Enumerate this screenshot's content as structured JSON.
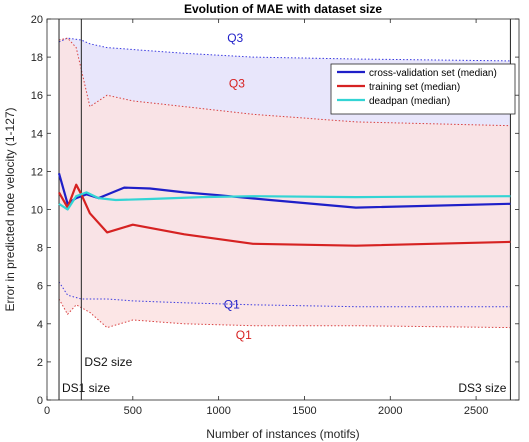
{
  "chart_data": {
    "type": "line",
    "title": "Evolution of MAE with dataset size",
    "xlabel": "Number of instances (motifs)",
    "ylabel": "Error in predicted note velocity (1-127)",
    "xlim": [
      0,
      2750
    ],
    "ylim": [
      0,
      20
    ],
    "xticks": [
      0,
      500,
      1000,
      1500,
      2000,
      2500
    ],
    "yticks": [
      0,
      2,
      4,
      6,
      8,
      10,
      12,
      14,
      16,
      18,
      20
    ],
    "grid": false,
    "legend_position": "top-right",
    "series": [
      {
        "name": "cross-validation set (median)",
        "color": "#1f1fc8",
        "x": [
          70,
          120,
          170,
          230,
          300,
          450,
          600,
          800,
          1000,
          1300,
          1800,
          2700
        ],
        "y": [
          11.9,
          10.3,
          10.6,
          10.8,
          10.6,
          11.15,
          11.1,
          10.9,
          10.75,
          10.5,
          10.1,
          10.3
        ]
      },
      {
        "name": "training set (median)",
        "color": "#d62222",
        "x": [
          70,
          120,
          170,
          200,
          250,
          350,
          500,
          800,
          1200,
          1800,
          2700
        ],
        "y": [
          10.9,
          10.1,
          11.3,
          10.8,
          9.8,
          8.8,
          9.2,
          8.7,
          8.2,
          8.1,
          8.3
        ]
      },
      {
        "name": "deadpan (median)",
        "color": "#33d4d4",
        "x": [
          70,
          120,
          170,
          230,
          300,
          400,
          600,
          900,
          1200,
          1800,
          2700
        ],
        "y": [
          10.3,
          10.0,
          10.7,
          10.9,
          10.6,
          10.5,
          10.55,
          10.65,
          10.7,
          10.65,
          10.7
        ]
      }
    ],
    "bands": [
      {
        "name": "cross-validation interquartile",
        "color": "#e8e6fb",
        "edge_color": "#3a3ae0",
        "x": [
          70,
          120,
          200,
          250,
          350,
          500,
          800,
          1200,
          1800,
          2700
        ],
        "q1": [
          6.2,
          5.5,
          5.3,
          5.3,
          5.3,
          5.2,
          5.1,
          5.0,
          4.9,
          4.9
        ],
        "q3": [
          18.8,
          19.0,
          18.9,
          18.7,
          18.5,
          18.4,
          18.2,
          18.0,
          17.9,
          17.8
        ]
      },
      {
        "name": "training interquartile",
        "color": "#fbe2e2",
        "edge_color": "#d84040",
        "x": [
          70,
          120,
          170,
          250,
          350,
          500,
          800,
          1200,
          1800,
          2700
        ],
        "q1": [
          5.3,
          4.5,
          5.0,
          4.6,
          3.8,
          4.2,
          4.0,
          3.9,
          3.9,
          3.8
        ],
        "q3": [
          18.9,
          19.0,
          18.5,
          15.4,
          16.0,
          15.7,
          15.4,
          15.0,
          14.6,
          14.4
        ]
      }
    ],
    "vlines": [
      {
        "x": 70,
        "label": "DS1 size"
      },
      {
        "x": 200,
        "label": "DS2 size"
      },
      {
        "x": 2700,
        "label": "DS3 size"
      }
    ],
    "annotations": [
      {
        "text": "Q3",
        "x": 1050,
        "y": 18.8,
        "color": "#1f1fc8"
      },
      {
        "text": "Q3",
        "x": 1060,
        "y": 16.4,
        "color": "#d62222"
      },
      {
        "text": "Q1",
        "x": 1030,
        "y": 4.8,
        "color": "#1f1fc8"
      },
      {
        "text": "Q1",
        "x": 1100,
        "y": 3.2,
        "color": "#d62222"
      }
    ]
  }
}
